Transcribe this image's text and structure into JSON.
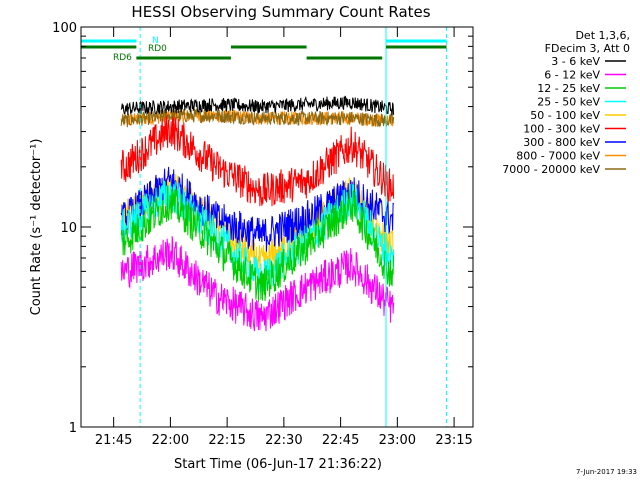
{
  "chart_data": {
    "type": "line",
    "title": "HESSI Observing Summary Count Rates",
    "xlabel": "Start Time (06-Jun-17 21:36:22)",
    "ylabel": "Count Rate (s⁻¹ detector⁻¹)",
    "y_scale": "log",
    "ylim": [
      1,
      100
    ],
    "xlim": [
      "21:36:22",
      "23:20:00"
    ],
    "x_ticks": [
      "21:45",
      "22:00",
      "22:15",
      "22:30",
      "22:45",
      "23:00",
      "23:15"
    ],
    "y_ticks": [
      "1",
      "10",
      "100"
    ],
    "legend": {
      "placement": "top-right",
      "header": [
        "Det 1,3,6,",
        "FDecim 3, Att 0"
      ]
    },
    "series": [
      {
        "name": "3 - 6 keV",
        "color": "#000000",
        "x": [
          "21:48",
          "22:00",
          "22:12",
          "22:24",
          "22:36",
          "22:48",
          "22:58"
        ],
        "values": [
          39,
          40,
          41,
          40,
          41,
          42,
          39
        ]
      },
      {
        "name": "6 - 12 keV",
        "color": "#ff00ff",
        "x": [
          "21:48",
          "22:00",
          "22:12",
          "22:24",
          "22:36",
          "22:48",
          "22:58"
        ],
        "values": [
          6,
          7.5,
          4.5,
          3.5,
          5,
          6.5,
          4
        ]
      },
      {
        "name": "12 - 25 keV",
        "color": "#00cc00",
        "x": [
          "21:48",
          "22:00",
          "22:12",
          "22:24",
          "22:36",
          "22:48",
          "22:58"
        ],
        "values": [
          8.5,
          13.5,
          8,
          5,
          8,
          13,
          6
        ]
      },
      {
        "name": "25 - 50 keV",
        "color": "#00ffff",
        "x": [
          "21:48",
          "22:00",
          "22:12",
          "22:24",
          "22:36",
          "22:48",
          "22:58"
        ],
        "values": [
          10,
          15,
          9,
          5.5,
          8.5,
          14,
          7
        ]
      },
      {
        "name": "50 - 100 keV",
        "color": "#ffcc00",
        "x": [
          "21:48",
          "22:00",
          "22:12",
          "22:24",
          "22:36",
          "22:48",
          "22:58"
        ],
        "values": [
          11,
          16,
          10,
          6.5,
          9.5,
          15,
          8
        ]
      },
      {
        "name": "100 - 300 keV",
        "color": "#ff0000",
        "x": [
          "21:48",
          "22:00",
          "22:12",
          "22:24",
          "22:36",
          "22:48",
          "22:58"
        ],
        "values": [
          20,
          31,
          20,
          15,
          17,
          26,
          16
        ]
      },
      {
        "name": "300 - 800 keV",
        "color": "#0000ff",
        "x": [
          "21:48",
          "22:00",
          "22:12",
          "22:24",
          "22:36",
          "22:48",
          "22:58"
        ],
        "values": [
          11,
          17,
          11,
          9,
          11,
          15,
          11
        ]
      },
      {
        "name": "800 - 7000 keV",
        "color": "#ff8c00",
        "x": [
          "21:48",
          "22:00",
          "22:12",
          "22:24",
          "22:36",
          "22:48",
          "22:58"
        ],
        "values": [
          34,
          36,
          36,
          35,
          35,
          35,
          34
        ]
      },
      {
        "name": "7000 - 20000 keV",
        "color": "#8b6914",
        "x": [
          "21:48",
          "22:00",
          "22:12",
          "22:24",
          "22:36",
          "22:48",
          "22:58"
        ],
        "values": [
          34,
          36,
          36,
          35,
          35,
          35,
          34
        ]
      }
    ],
    "annotations": [
      {
        "label": "N",
        "color": "#00ffff",
        "kind": "flag-bar",
        "segments": [
          [
            "21:36:22",
            "21:51"
          ],
          [
            "22:57",
            "23:13"
          ]
        ]
      },
      {
        "label": "RD0",
        "color": "#007700",
        "kind": "flag-bar",
        "segments": [
          [
            "21:36:22",
            "21:51"
          ],
          [
            "22:16",
            "22:36"
          ],
          [
            "22:57",
            "23:13"
          ]
        ]
      },
      {
        "label": "RD6",
        "color": "#007700",
        "kind": "flag-bar",
        "segments": [
          [
            "21:51",
            "22:16"
          ],
          [
            "22:36",
            "22:56"
          ]
        ]
      }
    ],
    "vertical_lines": [
      {
        "x": "21:36:22",
        "color": "#00ffff",
        "style": "solid"
      },
      {
        "x": "21:52",
        "color": "#00ffff",
        "style": "dashed"
      },
      {
        "x": "22:57",
        "color": "#00ffff",
        "style": "solid"
      },
      {
        "x": "23:13",
        "color": "#00ffff",
        "style": "dashed"
      }
    ],
    "data_range": [
      "21:47",
      "22:59"
    ]
  },
  "footer": {
    "date_stamp": "7-Jun-2017 19:33"
  }
}
